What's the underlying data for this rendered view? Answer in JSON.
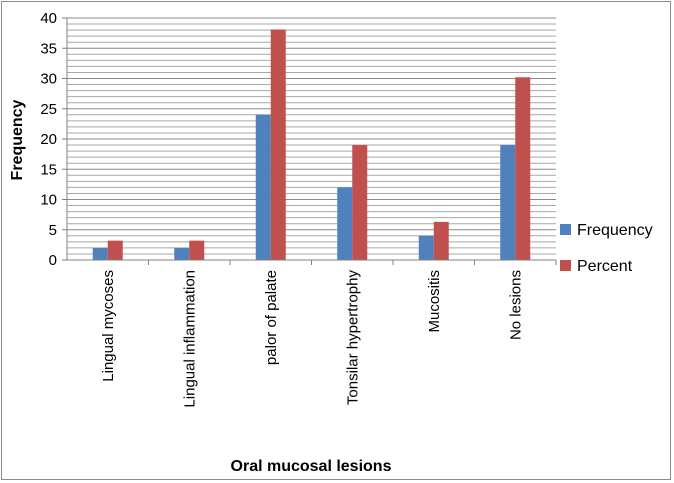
{
  "chart_data": {
    "type": "bar",
    "categories": [
      "Lingual mycoses",
      "Lingual inflammation",
      "palor of palate",
      "Tonsilar hypertrophy",
      "Mucositis",
      "No lesions"
    ],
    "series": [
      {
        "name": "Frequency",
        "values": [
          2,
          2,
          24,
          12,
          4,
          19
        ],
        "color": "#4f81bd"
      },
      {
        "name": "Percent",
        "values": [
          3.2,
          3.2,
          38.1,
          19,
          6.3,
          30.2
        ],
        "color": "#c0504d"
      }
    ],
    "xlabel": "Oral mucosal lesions",
    "ylabel": "Frequency",
    "ylim": [
      0,
      40
    ],
    "yticks": [
      0,
      5,
      10,
      15,
      20,
      25,
      30,
      35,
      40
    ],
    "grid": true,
    "legend_position": "right"
  }
}
